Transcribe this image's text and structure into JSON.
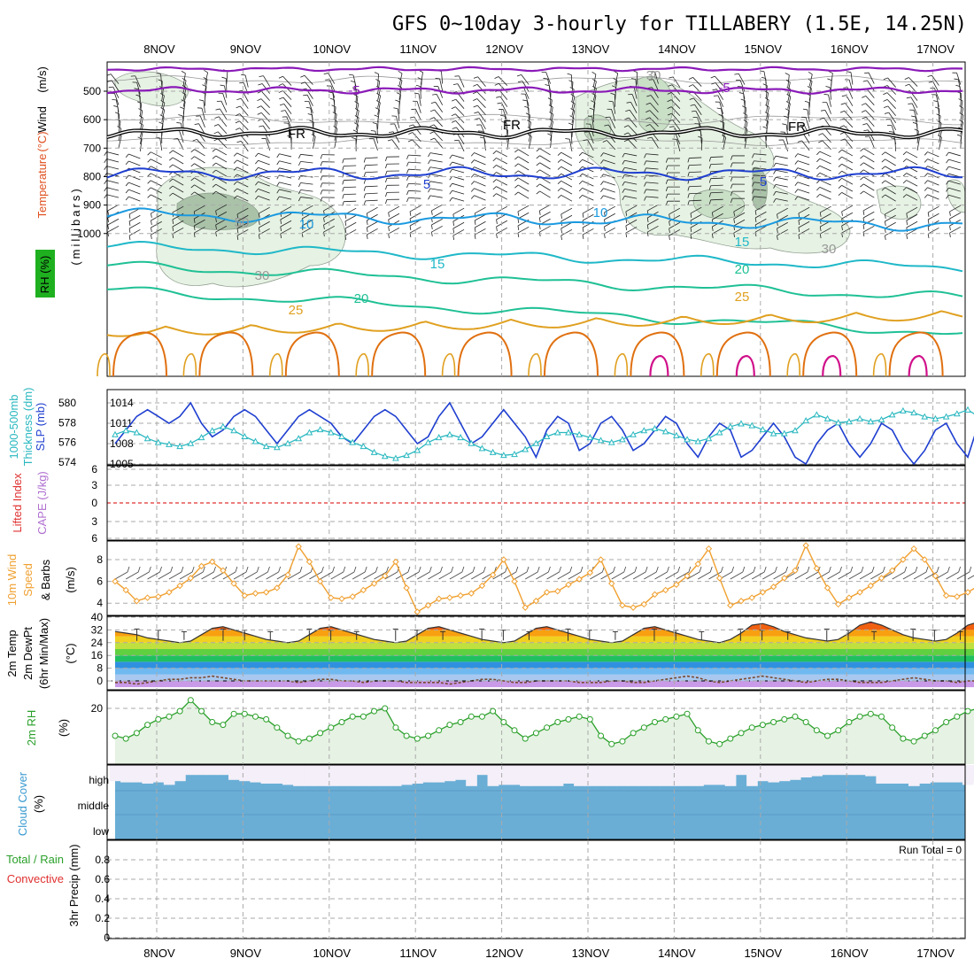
{
  "title": "GFS 0~10day 3-hourly for TILLABERY (1.5E, 14.25N)",
  "days": [
    "8NOV",
    "9NOV",
    "10NOV",
    "11NOV",
    "12NOV",
    "13NOV",
    "14NOV",
    "15NOV",
    "16NOV",
    "17NOV"
  ],
  "colors": {
    "purple": "#8a1ab8",
    "black": "#000000",
    "blue": "#1f3fd0",
    "lightblue": "#1b9ae0",
    "cyan": "#1fb8c8",
    "teal": "#1fc095",
    "orange": "#e0a020",
    "darkorange": "#e07010",
    "magenta": "#d0108a",
    "rh_fill": "#e6f2e3",
    "rh_fill2": "#c9dfc6",
    "rh_fill3": "#a9c2a8",
    "slp": "#1f3fd0",
    "thick": "#2ab8c0",
    "wind10": "#f0a030",
    "rh2m": "#2aa02a",
    "cloud": "#6aaed6",
    "cloud_gap": "#f4eff8"
  },
  "panels": {
    "upper": {
      "ylabels": [
        "Wind",
        "(m/s)",
        "Temperature",
        "(°C)",
        "RH",
        "(%)",
        "(millibars)"
      ],
      "yticks": [
        "500",
        "600",
        "700",
        "800",
        "900",
        "1000"
      ],
      "contour_labels": [
        "-5",
        "-5",
        "FR",
        "FR",
        "FR",
        "5",
        "5",
        "10",
        "10",
        "15",
        "15",
        "20",
        "20",
        "25",
        "25",
        "30",
        "30",
        "50",
        "30"
      ]
    },
    "slp": {
      "ylabels": [
        "SLP (mb)",
        "1000-500mb",
        "Thickness (dm)"
      ],
      "yticks_left": [
        "580",
        "578",
        "576",
        "574"
      ],
      "yticks_right": [
        "1014",
        "1011",
        "1008",
        "1005"
      ]
    },
    "cape": {
      "ylabels": [
        "Lifted Index",
        "CAPE (J/kg)"
      ],
      "yticks": [
        "6",
        "3",
        "0",
        "3",
        "6"
      ]
    },
    "wind10": {
      "ylabels": [
        "10m Wind",
        "Speed",
        "& Barbs",
        "(m/s)"
      ],
      "yticks": [
        "8",
        "6",
        "4"
      ]
    },
    "temp2m": {
      "ylabels": [
        "2m Temp",
        "2m DewPt",
        "(6hr Min/Max)",
        "(°C)"
      ],
      "yticks": [
        "40",
        "32",
        "24",
        "16",
        "8",
        "0"
      ]
    },
    "rh2m": {
      "ylabels": [
        "2m RH",
        "(%)"
      ],
      "yticks": [
        "20"
      ]
    },
    "cloud": {
      "ylabels": [
        "Cloud Cover",
        "(%)"
      ],
      "levels": [
        "high",
        "middle",
        "low"
      ]
    },
    "precip": {
      "ylabels": [
        "Total / Rain",
        "Convective",
        "3hr Precip (mm)"
      ],
      "yticks": [
        "0.8",
        "0.6",
        "0.4",
        "0.2",
        "0"
      ],
      "run_total": "Run Total = 0"
    }
  },
  "chart_data": [
    {
      "type": "line",
      "title": "SLP (mb)",
      "x_unit": "3-hourly step from 7NOV 12Z",
      "ylim": [
        1005,
        1015
      ],
      "series": [
        {
          "name": "SLP (mb)",
          "values": [
            1008,
            1010,
            1012,
            1013,
            1012,
            1011,
            1012,
            1014,
            1011,
            1009,
            1010,
            1012,
            1013,
            1012,
            1010,
            1008,
            1010,
            1012,
            1013,
            1012,
            1011,
            1009,
            1008,
            1010,
            1012,
            1013,
            1012,
            1010,
            1008,
            1009,
            1012,
            1014,
            1011,
            1008,
            1009,
            1011,
            1013,
            1011,
            1009,
            1006,
            1010,
            1012,
            1011,
            1007,
            1008,
            1011,
            1012,
            1010,
            1007,
            1008,
            1010,
            1012,
            1011,
            1008,
            1006,
            1009,
            1011,
            1010,
            1006,
            1007,
            1009,
            1011,
            1009,
            1006,
            1005,
            1008,
            1010,
            1011,
            1008,
            1006,
            1008,
            1011,
            1010,
            1007,
            1005,
            1007,
            1010,
            1011,
            1008,
            1006,
            1011
          ]
        }
      ]
    },
    {
      "type": "line",
      "title": "1000-500mb Thickness (dm)",
      "ylim": [
        573,
        581
      ],
      "series": [
        {
          "name": "1000-500mb Thickness (dm)",
          "values": [
            576.8,
            577.2,
            577,
            576.4,
            576,
            575.8,
            575.6,
            575.9,
            576.5,
            577.2,
            577.6,
            577.2,
            576.6,
            576.1,
            575.6,
            575.5,
            575.9,
            576.4,
            577,
            577.3,
            577,
            576.6,
            576,
            575.6,
            575,
            574.6,
            574.4,
            574.7,
            575.2,
            576,
            576.5,
            576.8,
            576.5,
            575.9,
            575.4,
            575,
            574.7,
            574.8,
            575.3,
            575.9,
            576.6,
            577,
            577,
            576.8,
            576.5,
            576.2,
            576,
            576.3,
            576.8,
            577.2,
            577.4,
            577.1,
            576.7,
            576.3,
            576.1,
            576.4,
            577,
            577.6,
            577.9,
            577.7,
            577.3,
            576.9,
            576.9,
            577.2,
            578.2,
            578.8,
            578.4,
            578,
            578.1,
            578.4,
            578.1,
            578.3,
            578.8,
            579.2,
            579,
            578.6,
            578.4,
            578.6,
            578.9,
            579.3,
            578.6
          ]
        }
      ]
    },
    {
      "type": "line",
      "title": "10m Wind Speed (m/s)",
      "ylim": [
        3,
        9.5
      ],
      "series": [
        {
          "name": "10m Wind Speed",
          "values": [
            6,
            5.2,
            4.2,
            4.5,
            4.6,
            5,
            5.6,
            6.3,
            7.4,
            7.8,
            7,
            5.8,
            4.7,
            4.9,
            5,
            5.4,
            6.6,
            9.2,
            7.8,
            6,
            4.5,
            4.4,
            4.6,
            5.2,
            5.8,
            6.5,
            7.8,
            5.4,
            3.2,
            3.8,
            4.4,
            4.5,
            4.7,
            4.9,
            5.6,
            6.6,
            8,
            6,
            3.6,
            4.2,
            5,
            5.1,
            5.7,
            6.2,
            6.8,
            8,
            5.8,
            3.8,
            3.6,
            3.9,
            4.8,
            5.2,
            5.7,
            6.5,
            7.6,
            9,
            6.3,
            3.8,
            4.2,
            4.5,
            5,
            5.5,
            6.3,
            7,
            9.3,
            7.2,
            5.4,
            3.9,
            4.5,
            5,
            5.6,
            6.3,
            7,
            8,
            9,
            8,
            6.5,
            4.7,
            4.6,
            5,
            5.6
          ]
        }
      ]
    },
    {
      "type": "line",
      "title": "2m RH (%)",
      "ylim": [
        0,
        26
      ],
      "series": [
        {
          "name": "2m RH",
          "values": [
            10,
            9,
            11,
            14,
            16,
            17,
            19,
            23,
            19,
            15,
            14,
            18,
            18,
            17,
            16,
            13,
            10,
            8,
            9,
            11,
            13,
            15,
            17,
            17,
            19,
            20,
            13,
            10,
            9,
            10,
            12,
            14,
            15,
            17,
            17,
            19,
            15,
            12,
            9,
            11,
            13,
            15,
            16,
            17,
            16,
            10,
            7,
            8,
            11,
            13,
            15,
            16,
            17,
            18,
            12,
            8,
            7,
            9,
            11,
            13,
            14,
            15,
            16,
            17,
            15,
            12,
            10,
            12,
            15,
            17,
            18,
            17,
            13,
            9,
            8,
            10,
            12,
            15,
            17,
            19,
            20
          ]
        }
      ]
    },
    {
      "type": "area",
      "title": "2m Temp (°C)",
      "ylim": [
        -4,
        40
      ],
      "series": [
        {
          "name": "2m Temp",
          "values": [
            31,
            30,
            29,
            27,
            26,
            25,
            24,
            25,
            29,
            33,
            34,
            32,
            30,
            28,
            26,
            25,
            24,
            25,
            29,
            33,
            34,
            32,
            30,
            28,
            26,
            25,
            24,
            25,
            29,
            33,
            34,
            32,
            30,
            28,
            26,
            25,
            24,
            25,
            29,
            33,
            34,
            32,
            30,
            28,
            26,
            25,
            24,
            25,
            29,
            33,
            34,
            32,
            30,
            28,
            26,
            25,
            24,
            26,
            30,
            35,
            36,
            34,
            31,
            29,
            27,
            26,
            25,
            26,
            30,
            35,
            37,
            35,
            32,
            29,
            27,
            26,
            25,
            26,
            30,
            35,
            37
          ]
        },
        {
          "name": "2m DewPt",
          "values": [
            -1,
            -1,
            -2,
            -1,
            0,
            1,
            1,
            2,
            2,
            3,
            2,
            1,
            0,
            0,
            0,
            0,
            0,
            -1,
            0,
            1,
            1,
            0,
            0,
            -1,
            0,
            0,
            0,
            -1,
            -1,
            -1,
            -1,
            -2,
            -1,
            0,
            1,
            1,
            0,
            -1,
            -1,
            0,
            0,
            0,
            0,
            -1,
            -1,
            -1,
            0,
            0,
            -1,
            -1,
            0,
            1,
            2,
            3,
            2,
            0,
            -1,
            0,
            1,
            2,
            3,
            2,
            1,
            0,
            -1,
            0,
            1,
            1,
            0,
            -1,
            -1,
            -1,
            0,
            1,
            2,
            1,
            0,
            0,
            -1,
            0,
            0
          ]
        }
      ]
    }
  ],
  "cloud_high": [
    0.35,
    0.3,
    0.3,
    0.25,
    0.3,
    0.2,
    0.35,
    0.6,
    0.6,
    0.6,
    0.6,
    0.4,
    0.35,
    0.3,
    0.25,
    0.25,
    0.2,
    0.15,
    0.15,
    0.15,
    0.15,
    0.15,
    0.15,
    0.15,
    0.15,
    0.15,
    0.15,
    0.2,
    0.25,
    0.3,
    0.3,
    0.35,
    0.4,
    0.15,
    0.6,
    0.15,
    0.2,
    0.2,
    0.15,
    0.15,
    0.15,
    0.15,
    0.25,
    0.15,
    0.15,
    0.15,
    0.15,
    0.15,
    0.15,
    0.15,
    0.15,
    0.15,
    0.15,
    0.15,
    0.15,
    0.2,
    0.2,
    0.15,
    0.6,
    0.15,
    0.35,
    0.3,
    0.35,
    0.4,
    0.5,
    0.55,
    0.6,
    0.6,
    0.6,
    0.6,
    0.55,
    0.25,
    0.25,
    0.25,
    0.15,
    0.25,
    0.3,
    0.3,
    0.3,
    0.2,
    0.3
  ],
  "cloud_note": "Run Total = 0"
}
